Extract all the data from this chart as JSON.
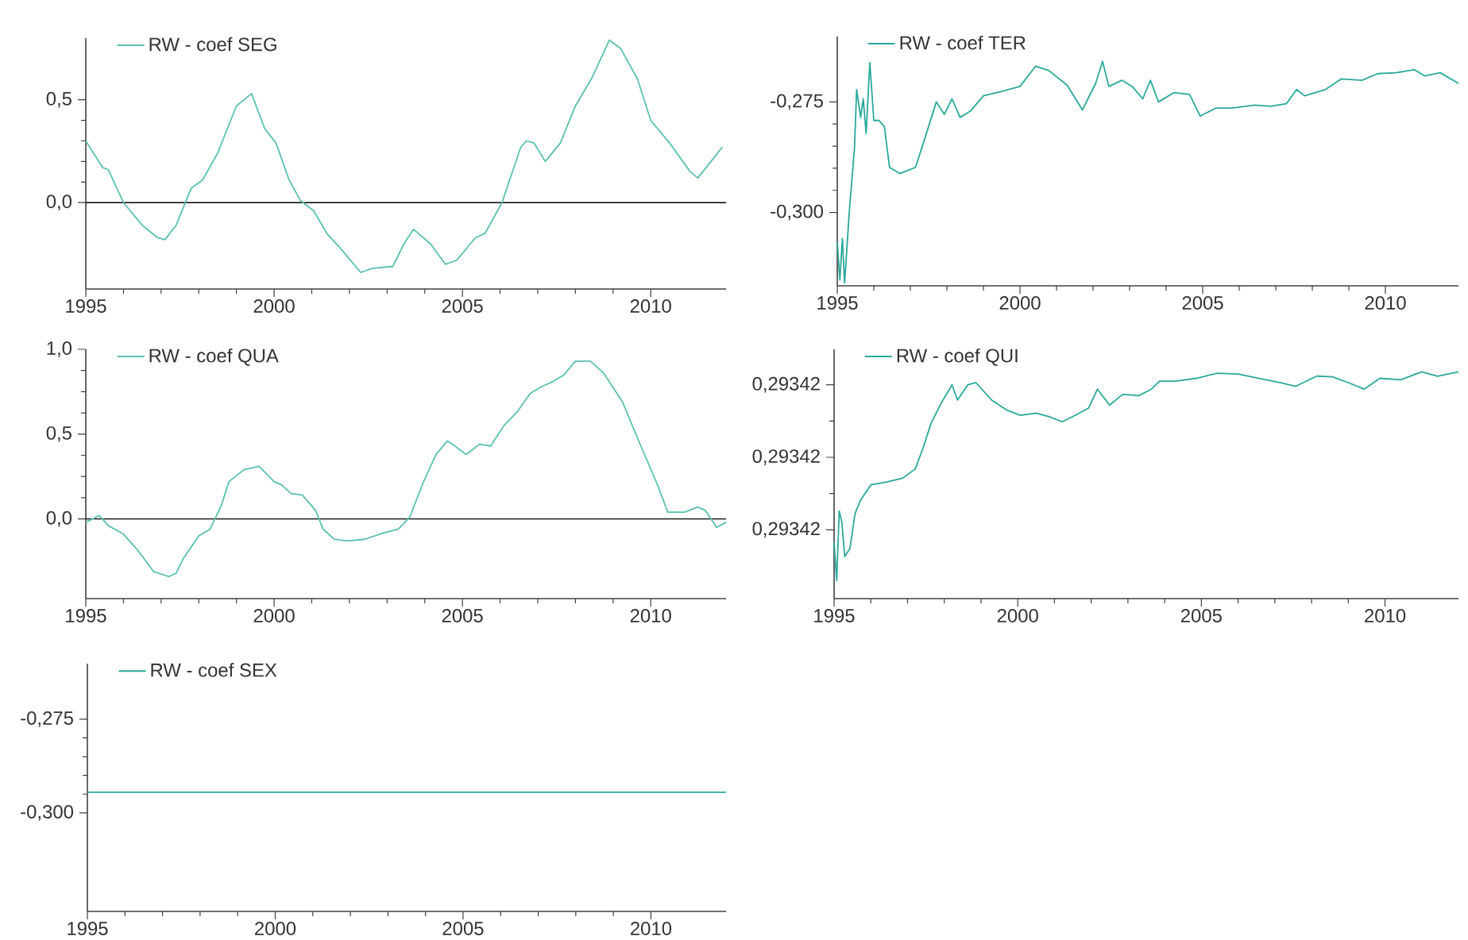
{
  "chart_data": [
    {
      "type": "line",
      "xlim": [
        1995,
        2012
      ],
      "xticks": [
        1995,
        2000,
        2005,
        2010
      ],
      "ylim": [
        -0.42,
        0.8
      ],
      "yticks": [
        {
          "value": 0,
          "label": "0,0"
        },
        {
          "value": 0.5,
          "label": "0,5"
        }
      ],
      "legend": "top left",
      "ref_lines": [
        {
          "axis": "y",
          "value": 0,
          "color": "#000000"
        }
      ],
      "x": [
        1995.0,
        1995.45,
        1995.6,
        1996.0,
        1996.5,
        1996.9,
        1997.1,
        1997.4,
        1997.8,
        1998.1,
        1998.5,
        1999.0,
        1999.4,
        1999.75,
        2000.05,
        2000.4,
        2000.7,
        2001.05,
        2001.4,
        2001.75,
        2002.3,
        2002.6,
        2003.15,
        2003.45,
        2003.7,
        2004.15,
        2004.55,
        2004.85,
        2005.35,
        2005.6,
        2006.05,
        2006.55,
        2006.7,
        2006.9,
        2007.2,
        2007.6,
        2008.0,
        2008.45,
        2008.9,
        2009.2,
        2009.65,
        2010.0,
        2010.5,
        2011.05,
        2011.25,
        2011.6,
        2011.9
      ],
      "series": [
        {
          "name": "RW - coef SEG",
          "color": "#5bbfb2",
          "values": [
            0.3,
            0.17,
            0.16,
            0.0,
            -0.11,
            -0.17,
            -0.18,
            -0.11,
            0.07,
            0.11,
            0.24,
            0.47,
            0.53,
            0.36,
            0.29,
            0.11,
            0.01,
            -0.04,
            -0.15,
            -0.22,
            -0.34,
            -0.32,
            -0.31,
            -0.2,
            -0.13,
            -0.2,
            -0.3,
            -0.28,
            -0.17,
            -0.15,
            0.0,
            0.27,
            0.3,
            0.29,
            0.2,
            0.29,
            0.47,
            0.61,
            0.79,
            0.75,
            0.6,
            0.4,
            0.29,
            0.15,
            0.12,
            0.2,
            0.27
          ]
        }
      ]
    },
    {
      "type": "line",
      "xlim": [
        1995,
        2012
      ],
      "xticks": [
        1995,
        2000,
        2005,
        2010
      ],
      "ylim": [
        -0.3166,
        -0.2602
      ],
      "yticks": [
        {
          "value": -0.3,
          "label": "-0,300"
        },
        {
          "value": -0.275,
          "label": "-0,275"
        }
      ],
      "legend": "top left",
      "x": [
        1995.0,
        1995.07,
        1995.14,
        1995.2,
        1995.33,
        1995.47,
        1995.53,
        1995.64,
        1995.71,
        1995.79,
        1995.89,
        1996.0,
        1996.14,
        1996.29,
        1996.43,
        1996.71,
        1997.14,
        1997.36,
        1997.71,
        1997.93,
        1998.14,
        1998.36,
        1998.64,
        1999.0,
        1999.5,
        2000.0,
        2000.43,
        2000.79,
        2001.29,
        2001.71,
        2002.07,
        2002.26,
        2002.43,
        2002.79,
        2003.07,
        2003.36,
        2003.57,
        2003.79,
        2004.21,
        2004.64,
        2004.93,
        2005.36,
        2005.79,
        2006.43,
        2006.86,
        2007.29,
        2007.57,
        2007.79,
        2008.36,
        2008.79,
        2009.36,
        2009.79,
        2010.29,
        2010.79,
        2011.07,
        2011.5,
        2012.0
      ],
      "series": [
        {
          "name": "RW - coef TER",
          "color": "#2aa89b",
          "values": [
            -0.3068,
            -0.3153,
            -0.3059,
            -0.316,
            -0.2997,
            -0.2856,
            -0.2722,
            -0.2785,
            -0.2743,
            -0.2821,
            -0.2661,
            -0.2792,
            -0.2792,
            -0.2806,
            -0.2898,
            -0.2912,
            -0.2898,
            -0.2842,
            -0.275,
            -0.2778,
            -0.2743,
            -0.2785,
            -0.2771,
            -0.2736,
            -0.2726,
            -0.2715,
            -0.2669,
            -0.2679,
            -0.2712,
            -0.2768,
            -0.2708,
            -0.2658,
            -0.2715,
            -0.2701,
            -0.2715,
            -0.2743,
            -0.2701,
            -0.275,
            -0.2729,
            -0.2733,
            -0.2782,
            -0.2764,
            -0.2764,
            -0.2757,
            -0.276,
            -0.2754,
            -0.2722,
            -0.2736,
            -0.2722,
            -0.2698,
            -0.2701,
            -0.2686,
            -0.2684,
            -0.2677,
            -0.2691,
            -0.2684,
            -0.2708
          ]
        }
      ]
    },
    {
      "type": "line",
      "xlim": [
        1995,
        2012
      ],
      "xticks": [
        1995,
        2000,
        2005,
        2010
      ],
      "ylim": [
        -0.47,
        1.0
      ],
      "yticks": [
        {
          "value": 0,
          "label": "0,0"
        },
        {
          "value": 0.5,
          "label": "0,5"
        },
        {
          "value": 1,
          "label": "1,0"
        }
      ],
      "legend": "top left",
      "ref_lines": [
        {
          "axis": "y",
          "value": 0,
          "color": "#000000"
        }
      ],
      "x": [
        1995.0,
        1995.36,
        1995.6,
        1996.0,
        1996.4,
        1996.8,
        1997.2,
        1997.4,
        1997.6,
        1998.0,
        1998.3,
        1998.6,
        1998.8,
        1999.2,
        1999.6,
        2000.0,
        2000.2,
        2000.45,
        2000.75,
        2001.1,
        2001.3,
        2001.6,
        2001.95,
        2002.4,
        2002.95,
        2003.3,
        2003.6,
        2003.95,
        2004.3,
        2004.6,
        2004.8,
        2005.1,
        2005.45,
        2005.75,
        2006.1,
        2006.45,
        2006.8,
        2007.1,
        2007.4,
        2007.7,
        2008.0,
        2008.4,
        2008.75,
        2009.25,
        2009.7,
        2010.2,
        2010.45,
        2010.9,
        2011.25,
        2011.45,
        2011.75,
        2012.0
      ],
      "series": [
        {
          "name": "RW - coef QUA",
          "color": "#5bbfb2",
          "values": [
            -0.02,
            0.02,
            -0.04,
            -0.09,
            -0.19,
            -0.31,
            -0.34,
            -0.32,
            -0.23,
            -0.1,
            -0.06,
            0.08,
            0.22,
            0.29,
            0.31,
            0.22,
            0.2,
            0.15,
            0.14,
            0.05,
            -0.06,
            -0.12,
            -0.13,
            -0.12,
            -0.08,
            -0.06,
            0.01,
            0.21,
            0.38,
            0.46,
            0.43,
            0.38,
            0.44,
            0.43,
            0.55,
            0.63,
            0.74,
            0.78,
            0.81,
            0.85,
            0.93,
            0.93,
            0.86,
            0.69,
            0.45,
            0.19,
            0.04,
            0.04,
            0.07,
            0.05,
            -0.05,
            -0.02
          ]
        }
      ]
    },
    {
      "type": "line",
      "xlim": [
        1995,
        2012
      ],
      "xticks": [
        1995,
        2000,
        2005,
        2010
      ],
      "ylim": [
        0.29342005,
        0.29342349
      ],
      "yticks": [
        {
          "value": 0.293421,
          "label": "0,29342"
        },
        {
          "value": 0.293422,
          "label": "0,29342"
        },
        {
          "value": 0.293423,
          "label": "0,29342"
        }
      ],
      "legend": "top left",
      "x": [
        1995.0,
        1995.07,
        1995.14,
        1995.21,
        1995.29,
        1995.43,
        1995.57,
        1995.71,
        1996.0,
        1996.43,
        1996.86,
        1997.21,
        1997.43,
        1997.64,
        1997.93,
        1998.21,
        1998.36,
        1998.64,
        1998.86,
        1999.29,
        1999.71,
        2000.07,
        2000.5,
        2000.86,
        2001.21,
        2001.57,
        2001.93,
        2002.17,
        2002.5,
        2002.86,
        2003.29,
        2003.64,
        2003.86,
        2004.29,
        2004.86,
        2005.43,
        2006.0,
        2006.57,
        2007.14,
        2007.57,
        2008.14,
        2008.57,
        2009.0,
        2009.43,
        2009.86,
        2010.43,
        2011.0,
        2011.43,
        2012.0
      ],
      "series": [
        {
          "name": "RW - coef QUI",
          "color": "#2aa89b",
          "values": [
            0.29342082,
            0.2934203,
            0.29342126,
            0.29342111,
            0.29342063,
            0.29342074,
            0.29342122,
            0.2934214,
            0.29342162,
            0.29342166,
            0.29342171,
            0.29342184,
            0.29342214,
            0.29342247,
            0.29342276,
            0.293423,
            0.29342279,
            0.293423,
            0.29342303,
            0.29342279,
            0.29342265,
            0.29342258,
            0.29342261,
            0.29342256,
            0.29342249,
            0.29342258,
            0.29342268,
            0.29342294,
            0.29342272,
            0.29342287,
            0.29342285,
            0.29342294,
            0.29342305,
            0.29342305,
            0.29342309,
            0.29342316,
            0.29342315,
            0.29342309,
            0.29342303,
            0.29342298,
            0.29342312,
            0.29342311,
            0.29342303,
            0.29342294,
            0.29342309,
            0.29342307,
            0.29342318,
            0.29342312,
            0.29342318
          ]
        }
      ]
    },
    {
      "type": "line",
      "xlim": [
        1995,
        2012
      ],
      "xticks": [
        1995,
        2000,
        2005,
        2010
      ],
      "ylim": [
        -0.3263,
        -0.2602
      ],
      "yticks": [
        {
          "value": -0.3,
          "label": "-0,300"
        },
        {
          "value": -0.275,
          "label": "-0,275"
        }
      ],
      "legend": "top left",
      "x": [
        1995,
        2012
      ],
      "series": [
        {
          "name": "RW - coef SEX",
          "color": "#2aa89b",
          "values": [
            -0.2945,
            -0.2945
          ]
        }
      ]
    }
  ]
}
